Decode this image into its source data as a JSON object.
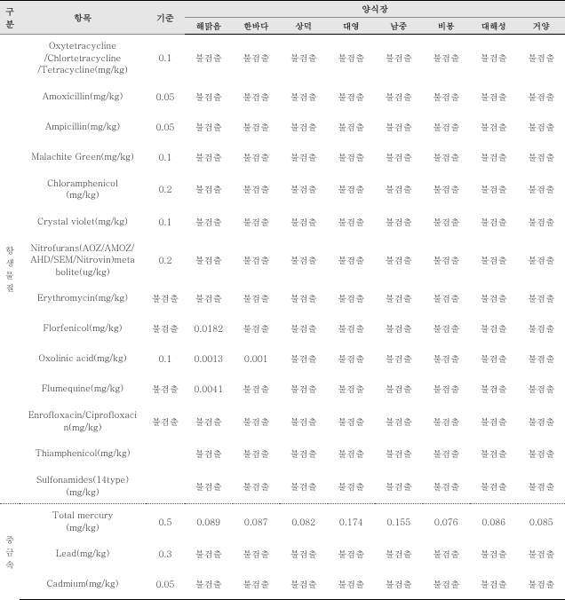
{
  "header": {
    "gubun": "구\n분",
    "item": "항목",
    "standard": "기준",
    "group": "양식장",
    "farms": [
      "해맑음",
      "한바다",
      "상덕",
      "대영",
      "남중",
      "비봉",
      "대해성",
      "거양"
    ]
  },
  "sections": [
    {
      "label": "항\n생\n물\n질",
      "rows": [
        {
          "item": "Oxytetracycline\n/Chlortetracycline\n/Tetracycline(mg/kg)",
          "std": "0.1",
          "tall": true,
          "v": [
            "불검출",
            "불검출",
            "불검출",
            "불검출",
            "불검출",
            "불검출",
            "불검출",
            "불검출"
          ]
        },
        {
          "item": "Amoxicillin(mg/kg)",
          "std": "0.05",
          "v": [
            "불검출",
            "불검출",
            "불검출",
            "불검출",
            "불검출",
            "불검출",
            "불검출",
            "불검출"
          ]
        },
        {
          "item": "Ampicillin(mg/kg)",
          "std": "0.05",
          "v": [
            "불검출",
            "불검출",
            "불검출",
            "불검출",
            "불검출",
            "불검출",
            "불검출",
            "불검출"
          ]
        },
        {
          "item": "Malachite Green(mg/kg)",
          "std": "0.1",
          "v": [
            "불검출",
            "불검출",
            "불검출",
            "불검출",
            "불검출",
            "불검출",
            "불검출",
            "불검출"
          ]
        },
        {
          "item": "Chloramphenicol\n(mg/kg)",
          "std": "0.2",
          "v": [
            "불검출",
            "불검출",
            "불검출",
            "불검출",
            "불검출",
            "불검출",
            "불검출",
            "불검출"
          ]
        },
        {
          "item": "Crystal violet(mg/kg)",
          "std": "0.1",
          "v": [
            "불검출",
            "불검출",
            "불검출",
            "불검출",
            "불검출",
            "불검출",
            "불검출",
            "불검출"
          ]
        },
        {
          "item": "Nitrofurans(AOZ/AMOZ/\nAHD/SEM/Nitrovin)meta\nbolite(ug/kg)",
          "std": "0.2",
          "tall": true,
          "v": [
            "불검출",
            "불검출",
            "불검출",
            "불검출",
            "불검출",
            "불검출",
            "불검출",
            "불검출"
          ]
        },
        {
          "item": "Erythromycin(mg/kg)",
          "std": "불검출",
          "v": [
            "불검출",
            "불검출",
            "불검출",
            "불검출",
            "불검출",
            "불검출",
            "불검출",
            "불검출"
          ]
        },
        {
          "item": "Florfenicol(mg/kg)",
          "std": "불검출",
          "v": [
            "0.0182",
            "불검출",
            "불검출",
            "불검출",
            "불검출",
            "불검출",
            "불검출",
            "불검출"
          ]
        },
        {
          "item": "Oxolinic acid(mg/kg)",
          "std": "0.1",
          "v": [
            "0.0013",
            "0.001",
            "불검출",
            "불검출",
            "불검출",
            "불검출",
            "불검출",
            "불검출"
          ]
        },
        {
          "item": "Flumequine(mg/kg)",
          "std": "불검출",
          "v": [
            "0.0041",
            "불검출",
            "불검출",
            "불검출",
            "불검출",
            "불검출",
            "불검출",
            "불검출"
          ]
        },
        {
          "item": "Enrofloxacin/Ciprofloxaci\nn(mg/kg)",
          "std": "불검출",
          "v": [
            "불검출",
            "불검출",
            "불검출",
            "불검출",
            "불검출",
            "불검출",
            "불검출",
            "불검출"
          ]
        },
        {
          "item": "Thiamphenicol(mg/kg)",
          "std": "",
          "v": [
            "불검출",
            "불검출",
            "불검출",
            "불검출",
            "불검출",
            "불검출",
            "불검출",
            "불검출"
          ]
        },
        {
          "item": "Sulfonamides(14type)\n(mg/kg)",
          "std": "",
          "v": [
            "불검출",
            "불검출",
            "불검출",
            "불검출",
            "불검출",
            "불검출",
            "불검출",
            "불검출"
          ]
        }
      ]
    },
    {
      "label": "중\n금\n속",
      "rows": [
        {
          "item": "Total mercury\n(mg/kg)",
          "std": "0.5",
          "v": [
            "0.089",
            "0.087",
            "0.082",
            "0.174",
            "0.155",
            "0.076",
            "0.086",
            "0.085"
          ]
        },
        {
          "item": "Lead(mg/kg)",
          "std": "0.3",
          "v": [
            "불검출",
            "불검출",
            "불검출",
            "불검출",
            "불검출",
            "불검출",
            "불검출",
            "불검출"
          ]
        },
        {
          "item": "Cadmium(mg/kg)",
          "std": "0.05",
          "v": [
            "불검출",
            "불검출",
            "불검출",
            "불검출",
            "불검출",
            "불검출",
            "불검출",
            "불검출"
          ]
        }
      ]
    }
  ]
}
